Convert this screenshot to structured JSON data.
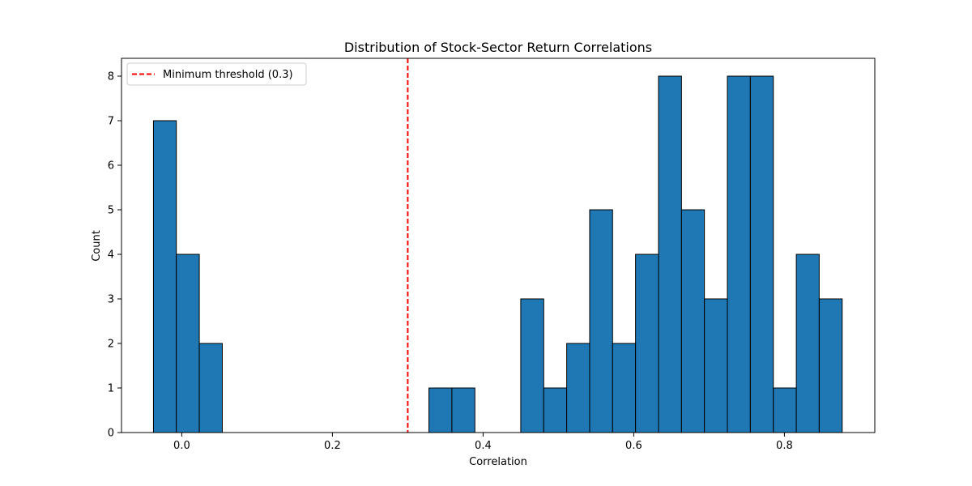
{
  "chart_data": {
    "type": "bar",
    "title": "Distribution of Stock-Sector Return Correlations",
    "xlabel": "Correlation",
    "ylabel": "Count",
    "xlim": [
      -0.08,
      0.92
    ],
    "ylim": [
      0,
      8.4
    ],
    "xticks": [
      0.0,
      0.2,
      0.4,
      0.6,
      0.8
    ],
    "xtick_labels": [
      "0.0",
      "0.2",
      "0.4",
      "0.6",
      "0.8"
    ],
    "yticks": [
      0,
      1,
      2,
      3,
      4,
      5,
      6,
      7,
      8
    ],
    "ytick_labels": [
      "0",
      "1",
      "2",
      "3",
      "4",
      "5",
      "6",
      "7",
      "8"
    ],
    "bar_color": "#1f77b4",
    "bar_edge_color": "#000000",
    "bins": [
      {
        "left": -0.0376,
        "right": -0.0072,
        "count": 7
      },
      {
        "left": -0.0072,
        "right": 0.0233,
        "count": 4
      },
      {
        "left": 0.0233,
        "right": 0.0538,
        "count": 2
      },
      {
        "left": 0.0538,
        "right": 0.0843,
        "count": 0
      },
      {
        "left": 0.0843,
        "right": 0.1148,
        "count": 0
      },
      {
        "left": 0.1148,
        "right": 0.1452,
        "count": 0
      },
      {
        "left": 0.1452,
        "right": 0.1757,
        "count": 0
      },
      {
        "left": 0.1757,
        "right": 0.2062,
        "count": 0
      },
      {
        "left": 0.2062,
        "right": 0.2367,
        "count": 0
      },
      {
        "left": 0.2367,
        "right": 0.2672,
        "count": 0
      },
      {
        "left": 0.2672,
        "right": 0.2976,
        "count": 0
      },
      {
        "left": 0.2976,
        "right": 0.3281,
        "count": 0
      },
      {
        "left": 0.3281,
        "right": 0.3586,
        "count": 1
      },
      {
        "left": 0.3586,
        "right": 0.3891,
        "count": 1
      },
      {
        "left": 0.3891,
        "right": 0.4195,
        "count": 0
      },
      {
        "left": 0.4195,
        "right": 0.45,
        "count": 0
      },
      {
        "left": 0.45,
        "right": 0.4805,
        "count": 3
      },
      {
        "left": 0.4805,
        "right": 0.511,
        "count": 1
      },
      {
        "left": 0.511,
        "right": 0.5415,
        "count": 2
      },
      {
        "left": 0.5415,
        "right": 0.5719,
        "count": 5
      },
      {
        "left": 0.5719,
        "right": 0.6024,
        "count": 2
      },
      {
        "left": 0.6024,
        "right": 0.6329,
        "count": 4
      },
      {
        "left": 0.6329,
        "right": 0.6634,
        "count": 8
      },
      {
        "left": 0.6634,
        "right": 0.6938,
        "count": 5
      },
      {
        "left": 0.6938,
        "right": 0.7243,
        "count": 3
      },
      {
        "left": 0.7243,
        "right": 0.7548,
        "count": 8
      },
      {
        "left": 0.7548,
        "right": 0.7853,
        "count": 8
      },
      {
        "left": 0.7853,
        "right": 0.8158,
        "count": 1
      },
      {
        "left": 0.8158,
        "right": 0.8462,
        "count": 4
      },
      {
        "left": 0.8462,
        "right": 0.8767,
        "count": 3
      }
    ],
    "threshold": {
      "x": 0.3,
      "label": "Minimum threshold (0.3)",
      "color": "#ff0000",
      "style": "dashed"
    },
    "legend": {
      "placement": "upper-left",
      "entries": [
        "Minimum threshold (0.3)"
      ]
    },
    "grid": false
  }
}
